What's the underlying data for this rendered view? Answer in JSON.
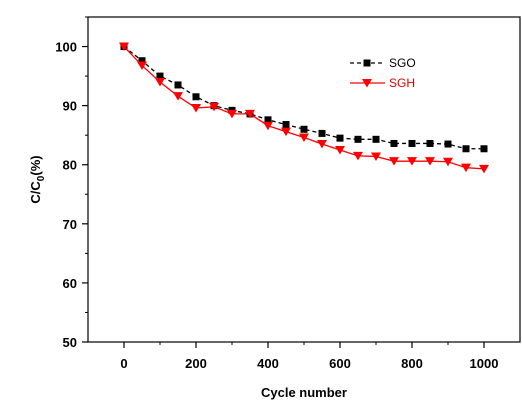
{
  "chart_data": {
    "type": "line",
    "xlabel": "Cycle number",
    "ylabel": "C/C0(%)",
    "ylabel_parts": {
      "main": "C/C",
      "sub": "0",
      "suffix": "(%)"
    },
    "xlim": [
      -100,
      1100
    ],
    "ylim": [
      50,
      105
    ],
    "xticks": [
      0,
      200,
      400,
      600,
      800,
      1000
    ],
    "yticks": [
      50,
      60,
      70,
      80,
      90,
      100
    ],
    "legend_position": "top-right",
    "x": [
      0,
      50,
      100,
      150,
      200,
      250,
      300,
      350,
      400,
      450,
      500,
      550,
      600,
      650,
      700,
      750,
      800,
      850,
      900,
      950,
      1000
    ],
    "series": [
      {
        "name": "SGO",
        "color": "#000000",
        "marker": "square",
        "line": "dashed",
        "values": [
          100,
          97.6,
          95.0,
          93.5,
          91.5,
          90.0,
          89.2,
          88.6,
          87.6,
          86.8,
          86.0,
          85.3,
          84.5,
          84.3,
          84.3,
          83.6,
          83.6,
          83.6,
          83.5,
          82.7,
          82.7
        ]
      },
      {
        "name": "SGH",
        "color": "#ff0000",
        "marker": "triangle-down",
        "line": "solid",
        "values": [
          100,
          96.8,
          94.0,
          91.6,
          89.6,
          89.8,
          88.6,
          88.6,
          86.6,
          85.6,
          84.6,
          83.5,
          82.5,
          81.5,
          81.4,
          80.6,
          80.6,
          80.6,
          80.5,
          79.5,
          79.3
        ]
      }
    ]
  }
}
